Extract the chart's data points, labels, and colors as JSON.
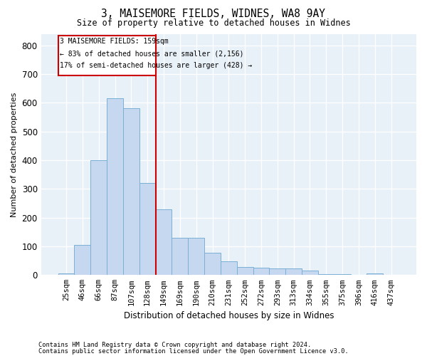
{
  "title": "3, MAISEMORE FIELDS, WIDNES, WA8 9AY",
  "subtitle": "Size of property relative to detached houses in Widnes",
  "xlabel": "Distribution of detached houses by size in Widnes",
  "ylabel": "Number of detached properties",
  "bar_color": "#c5d8ef",
  "bar_edge_color": "#7aafd4",
  "background_color": "#e8f0f8",
  "grid_color": "#ffffff",
  "annotation_box_color": "#cc0000",
  "vline_color": "#cc0000",
  "annotation_text_line1": "3 MAISEMORE FIELDS: 159sqm",
  "annotation_text_line2": "← 83% of detached houses are smaller (2,156)",
  "annotation_text_line3": "17% of semi-detached houses are larger (428) →",
  "categories": [
    "25sqm",
    "46sqm",
    "66sqm",
    "87sqm",
    "107sqm",
    "128sqm",
    "149sqm",
    "169sqm",
    "190sqm",
    "210sqm",
    "231sqm",
    "252sqm",
    "272sqm",
    "293sqm",
    "313sqm",
    "334sqm",
    "355sqm",
    "375sqm",
    "396sqm",
    "416sqm",
    "437sqm"
  ],
  "values": [
    5,
    105,
    400,
    615,
    580,
    320,
    230,
    130,
    130,
    78,
    47,
    28,
    25,
    24,
    22,
    15,
    3,
    2,
    1,
    5,
    1
  ],
  "vline_index": 5.5,
  "ylim": [
    0,
    840
  ],
  "yticks": [
    0,
    100,
    200,
    300,
    400,
    500,
    600,
    700,
    800
  ],
  "footnote1": "Contains HM Land Registry data © Crown copyright and database right 2024.",
  "footnote2": "Contains public sector information licensed under the Open Government Licence v3.0."
}
